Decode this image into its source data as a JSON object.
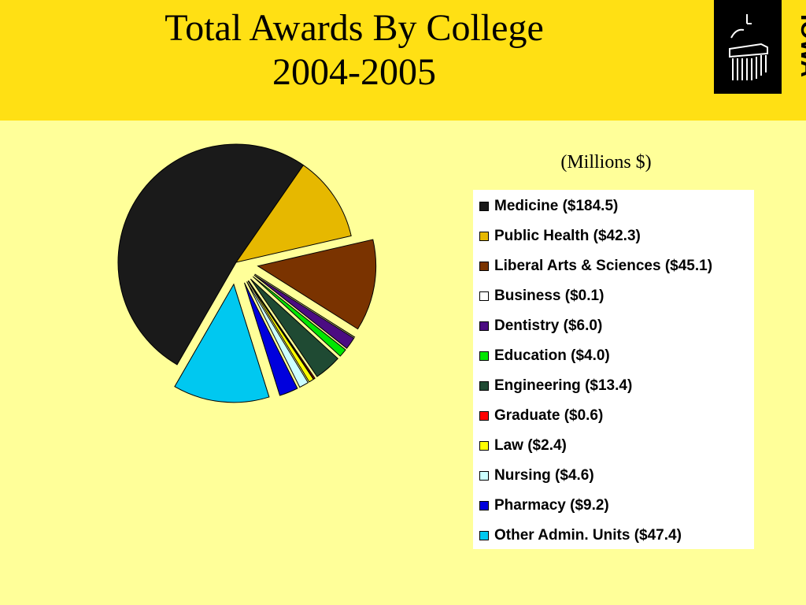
{
  "slide": {
    "title_line1": "Total Awards By College",
    "title_line2": "2004-2005",
    "units_label": "(Millions $)",
    "logo_text": "IOWA"
  },
  "colors": {
    "header_band": "#ffe014",
    "slide_background": "#ffff99",
    "logo_background": "#000000",
    "logo_accent": "#ffe014"
  },
  "chart_data": {
    "type": "pie",
    "title": "",
    "unit": "Millions $",
    "legend_position": "right",
    "categories": [
      "Medicine",
      "Public Health",
      "Liberal Arts & Sciences",
      "Business",
      "Dentistry",
      "Education",
      "Engineering",
      "Graduate",
      "Law",
      "Nursing",
      "Pharmacy",
      "Other Admin. Units"
    ],
    "values": [
      184.5,
      42.3,
      45.1,
      0.1,
      6.0,
      4.0,
      13.4,
      0.6,
      2.4,
      4.6,
      9.2,
      47.4
    ],
    "legend_labels": [
      "Medicine ($184.5)",
      "Public Health ($42.3)",
      "Liberal Arts & Sciences ($45.1)",
      "Business ($0.1)",
      "Dentistry ($6.0)",
      "Education ($4.0)",
      "Engineering ($13.4)",
      "Graduate ($0.6)",
      "Law ($2.4)",
      "Nursing ($4.6)",
      "Pharmacy ($9.2)",
      "Other Admin. Units ($47.4)"
    ],
    "colors": [
      "#1a1a1a",
      "#e6b800",
      "#7a3300",
      "#ffffff",
      "#4b0c82",
      "#00e600",
      "#1f4a33",
      "#ff0000",
      "#ffff00",
      "#ccffff",
      "#0000dd",
      "#00c8f0"
    ],
    "exploded": [
      false,
      false,
      true,
      true,
      true,
      true,
      true,
      true,
      true,
      true,
      true,
      true
    ]
  }
}
